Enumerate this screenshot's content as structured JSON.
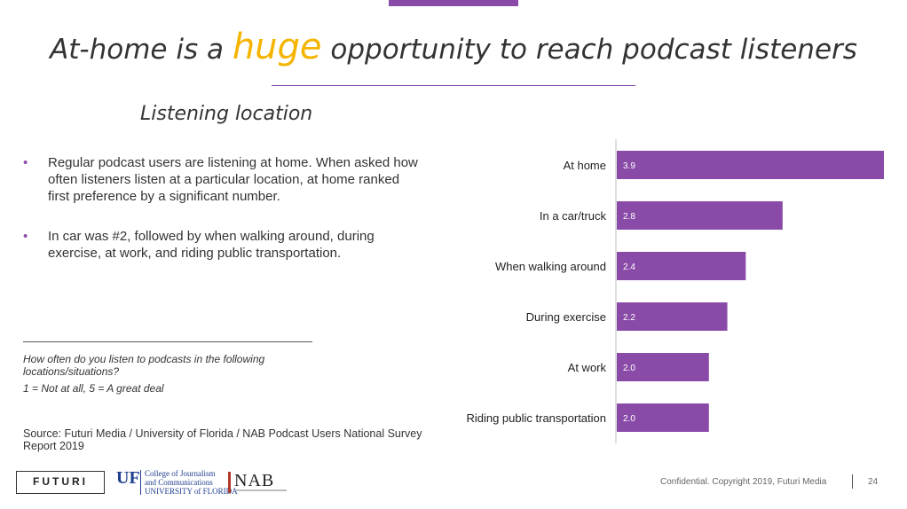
{
  "slide": {
    "title_pre": "At-home is a",
    "title_highlight": "huge",
    "title_post": "opportunity to reach podcast listeners",
    "subtitle": "Listening location",
    "bullets": [
      "Regular podcast users are listening at home. When asked how often listeners listen at a particular location, at home ranked first preference by a significant number.",
      "In car was #2, followed by when walking around, during exercise, at work, and riding public transportation."
    ],
    "bullet_symbol": "•",
    "question": "How often do you listen to podcasts in the following locations/situations?",
    "scale_note": "1 = Not at all, 5 = A great deal",
    "source": "Source: Futuri Media / University of Florida / NAB Podcast Users National Survey Report 2019",
    "footer": {
      "futuri_logo": "FUTURI",
      "uf_mark": "UF",
      "uf_line1": "College of Journalism",
      "uf_line2": "and Communications",
      "uf_line3": "UNIVERSITY of FLORIDA",
      "nab_logo": "NAB",
      "confidential": "Confidential. Copyright 2019, Futuri Media",
      "page_number": "24"
    },
    "colors": {
      "accent": "#8a4aa8",
      "highlight": "#f5b400",
      "text": "#333333"
    }
  },
  "chart_data": {
    "type": "bar",
    "orientation": "horizontal",
    "categories": [
      "At home",
      "In a car/truck",
      "When walking around",
      "During exercise",
      "At work",
      "Riding public transportation"
    ],
    "values": [
      3.9,
      2.8,
      2.4,
      2.2,
      2.0,
      2.0
    ],
    "value_labels": [
      "3.9",
      "2.8",
      "2.4",
      "2.2",
      "2.0",
      "2.0"
    ],
    "xlim": [
      1.0,
      3.9
    ],
    "grid": false,
    "legend": "none",
    "bar_color": "#8a4aa8",
    "label_color": "#ffffff"
  }
}
